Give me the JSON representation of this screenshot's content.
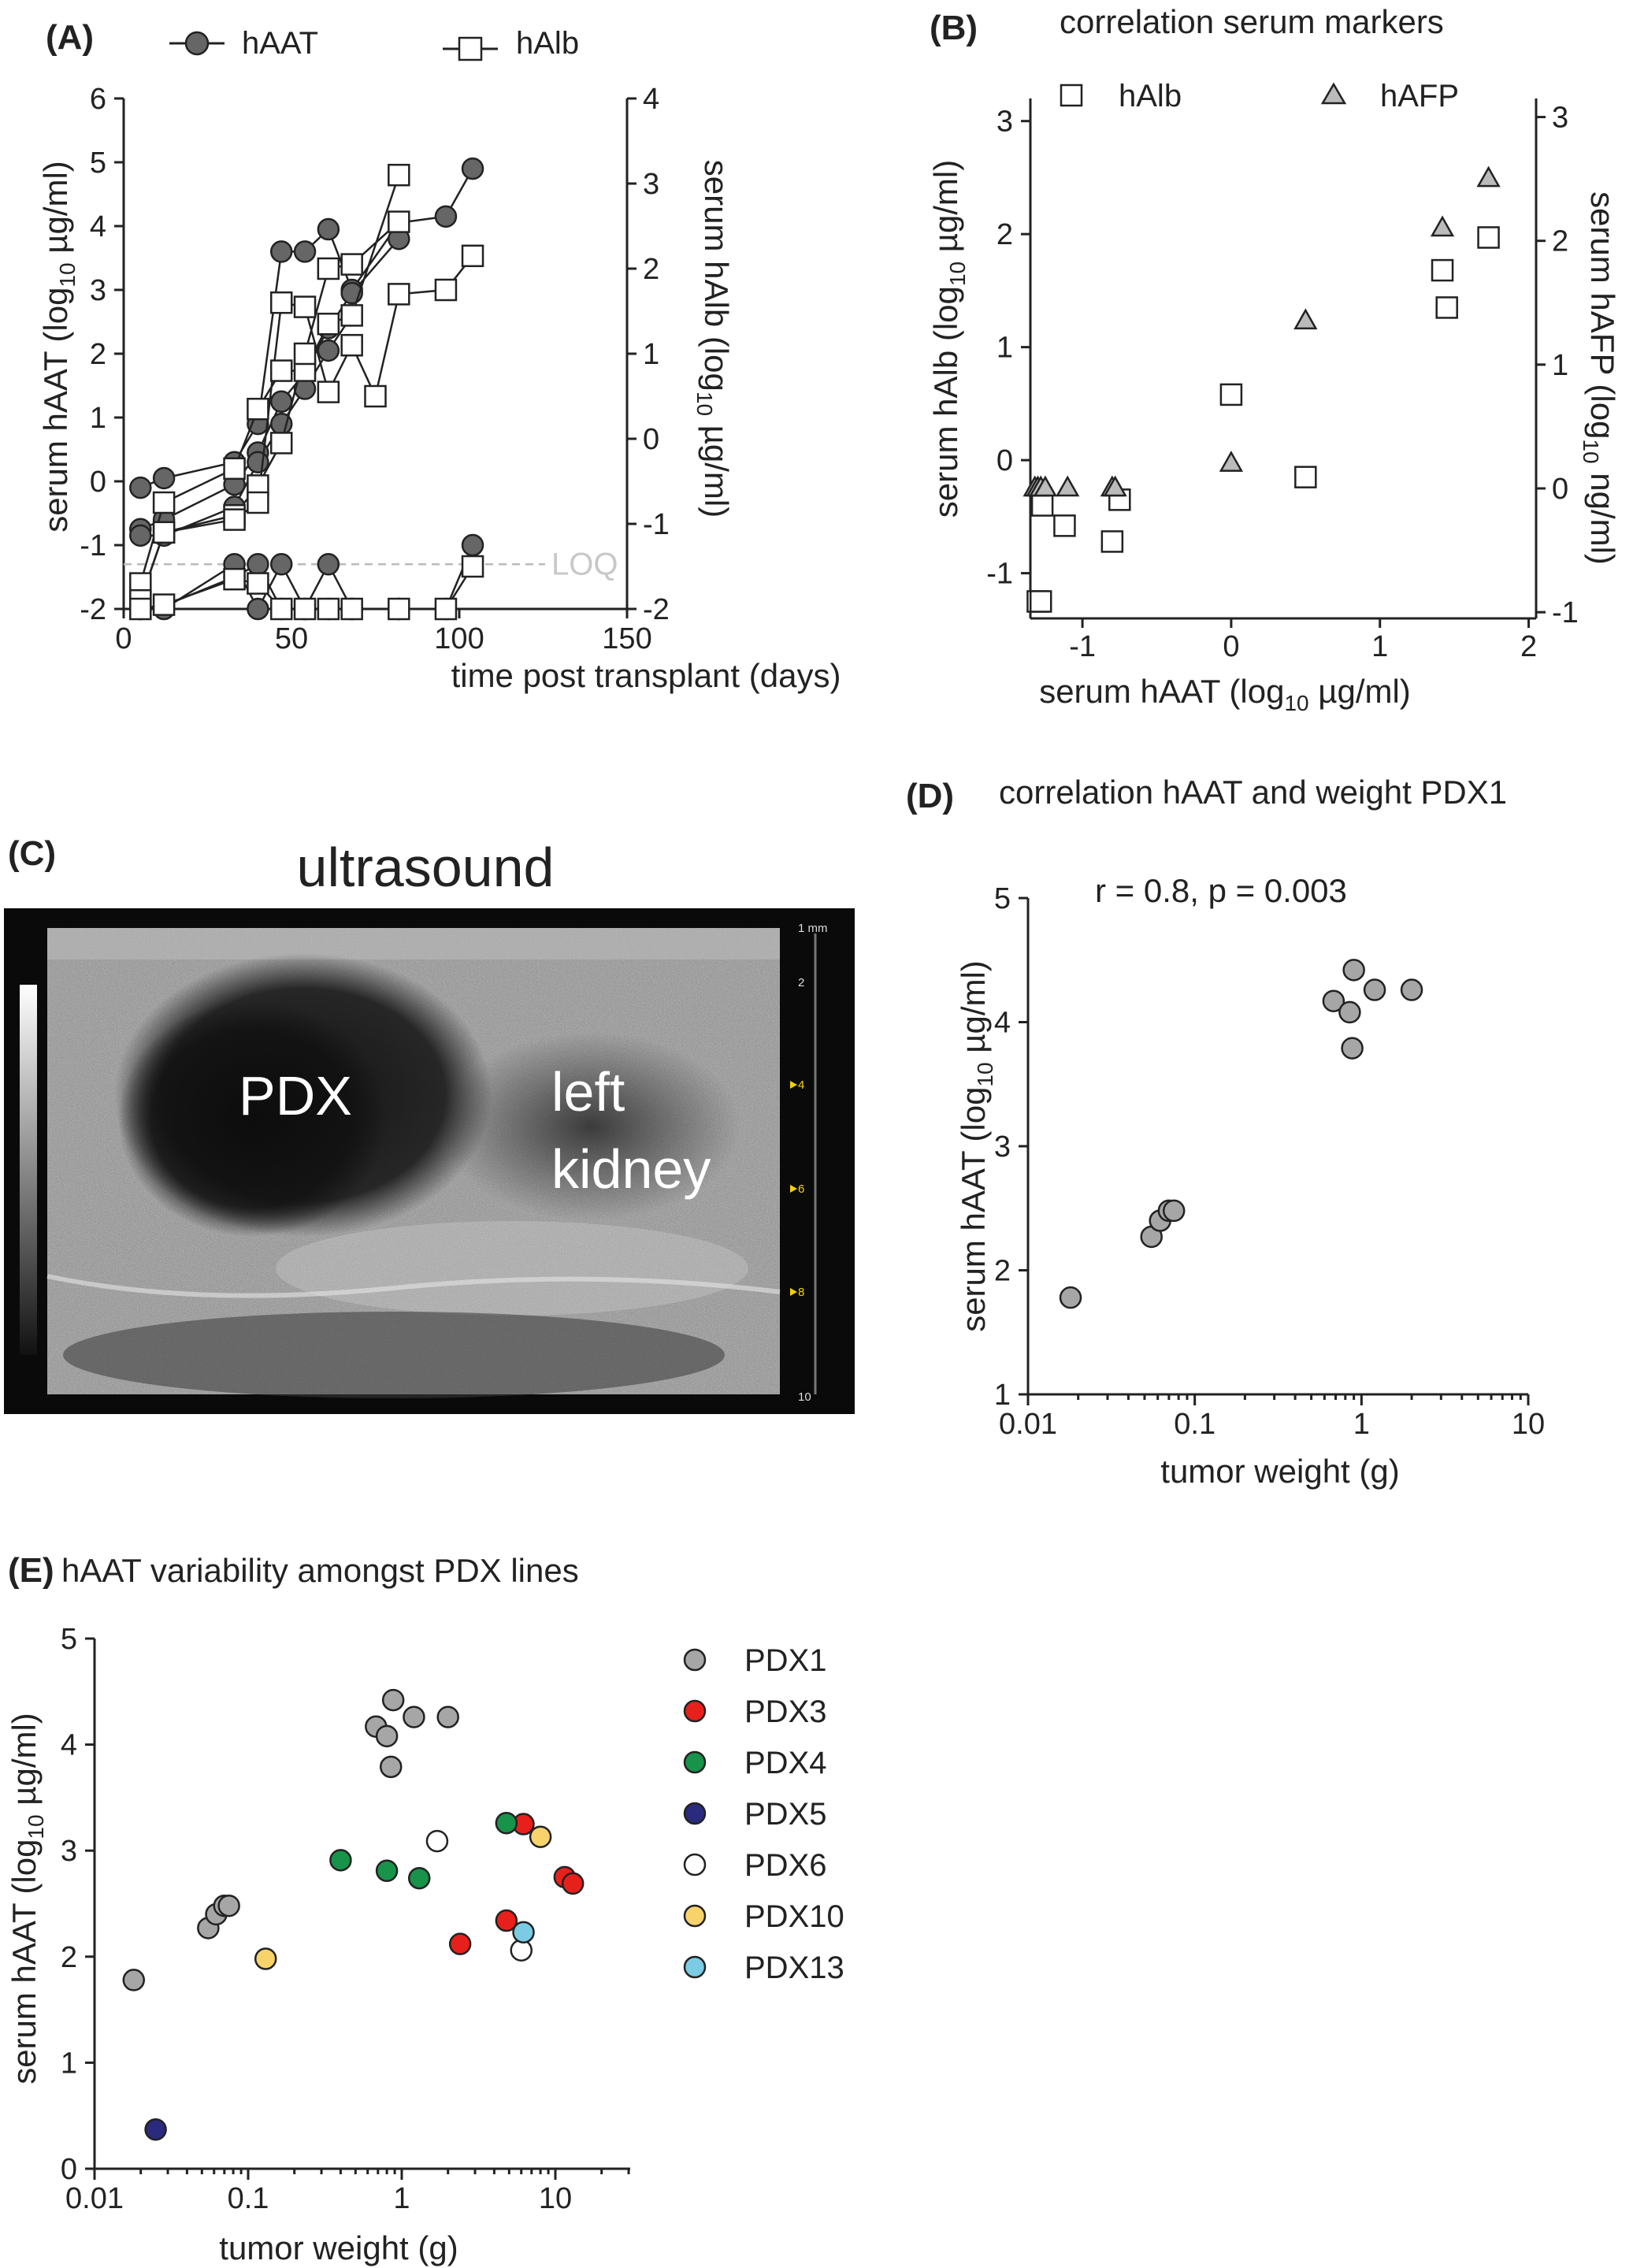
{
  "panels": {
    "A": {
      "letter": "(A)",
      "legend": [
        "hAAT",
        "hAlb"
      ],
      "ylabel_left": "serum hAAT (log10 µg/ml)",
      "ylabel_right": "serum hAlb (log10 µg/ml)",
      "xlabel": "time post transplant (days)",
      "loq_label": "LOQ",
      "x_ticks": [
        "0",
        "50",
        "100",
        "150"
      ],
      "y_left_ticks": [
        "-2",
        "-1",
        "0",
        "1",
        "2",
        "3",
        "4",
        "5",
        "6"
      ],
      "y_right_ticks": [
        "-2",
        "-1",
        "0",
        "1",
        "2",
        "3",
        "4"
      ]
    },
    "B": {
      "letter": "(B)",
      "title": "correlation serum markers",
      "legend": [
        "hAlb",
        "hAFP"
      ],
      "ylabel_left": "serum hAlb (log10 µg/ml)",
      "ylabel_right": "serum hAFP (log10 ng/ml)",
      "xlabel": "serum hAAT  (log10 µg/ml)",
      "x_ticks": [
        "-1",
        "0",
        "1",
        "2"
      ],
      "y_left_ticks": [
        "-1",
        "0",
        "1",
        "2",
        "3"
      ],
      "y_right_ticks": [
        "-1",
        "0",
        "1",
        "2",
        "3"
      ]
    },
    "C": {
      "letter": "(C)",
      "title": "ultrasound",
      "label_pdx": "PDX",
      "label_kidney_1": "left",
      "label_kidney_2": "kidney",
      "depth_labels": [
        "1 mm",
        "2",
        "4",
        "6",
        "8",
        "10"
      ]
    },
    "D": {
      "letter": "(D)",
      "title": "correlation hAAT and weight PDX1",
      "annotation": "r = 0.8, p = 0.003",
      "ylabel": "serum hAAT (log10 µg/ml)",
      "xlabel": "tumor weight (g)",
      "x_ticks": [
        "0.01",
        "0.1",
        "1",
        "10"
      ],
      "y_ticks": [
        "1",
        "2",
        "3",
        "4",
        "5"
      ]
    },
    "E": {
      "letter": "(E)",
      "title": "hAAT variability amongst PDX lines",
      "ylabel": "serum hAAT (log10 µg/ml)",
      "xlabel": "tumor weight (g)",
      "x_ticks": [
        "0.01",
        "0.1",
        "1",
        "10"
      ],
      "y_ticks": [
        "0",
        "1",
        "2",
        "3",
        "4",
        "5"
      ]
    }
  },
  "colors": {
    "hAAT_fill": "#666666",
    "hAFP_fill": "#bbbbbb",
    "PDX1": "#a6a6a6",
    "PDX3": "#e8201c",
    "PDX4": "#17934a",
    "PDX5": "#2a2a7e",
    "PDX6": "#ffffff",
    "PDX10": "#f8d26b",
    "PDX13": "#7ccbe5"
  },
  "chart_data": [
    {
      "panel": "A",
      "type": "line",
      "xlabel": "time post transplant (days)",
      "ylabel": "serum hAAT (log10 µg/ml)",
      "ylabel_right": "serum hAlb (log10 µg/ml)",
      "xlim": [
        0,
        150
      ],
      "ylim": [
        -2,
        6
      ],
      "ylim_right": [
        -2,
        4
      ],
      "loq": -1.3,
      "series": [
        {
          "name": "hAAT",
          "axis": "left",
          "lines": [
            [
              [
                5,
                -0.1
              ],
              [
                12,
                0.05
              ],
              [
                33,
                0.3
              ],
              [
                40,
                0.9
              ],
              [
                47,
                3.6
              ],
              [
                54,
                3.6
              ],
              [
                61,
                3.95
              ],
              [
                68,
                3.0
              ],
              [
                82,
                4.05
              ],
              [
                96,
                4.15
              ],
              [
                104,
                4.9
              ]
            ],
            [
              [
                5,
                -0.75
              ],
              [
                12,
                -0.6
              ],
              [
                33,
                -0.05
              ],
              [
                40,
                0.45
              ],
              [
                47,
                1.25
              ],
              [
                54,
                1.7
              ],
              [
                61,
                2.4
              ],
              [
                68,
                2.95
              ],
              [
                82,
                3.8
              ]
            ],
            [
              [
                5,
                -0.85
              ],
              [
                12,
                -0.85
              ],
              [
                33,
                -0.4
              ],
              [
                40,
                0.3
              ],
              [
                47,
                0.9
              ],
              [
                54,
                1.45
              ],
              [
                61,
                2.05
              ],
              [
                68,
                2.6
              ]
            ],
            [
              [
                5,
                -2
              ],
              [
                12,
                -1.95
              ],
              [
                33,
                -1.5
              ],
              [
                40,
                -1.3
              ],
              [
                47,
                -2
              ],
              [
                54,
                -2
              ],
              [
                61,
                -1.3
              ],
              [
                68,
                -2
              ],
              [
                82,
                -2
              ],
              [
                96,
                -2
              ],
              [
                104,
                -1.0
              ]
            ],
            [
              [
                5,
                -2
              ],
              [
                12,
                -2
              ],
              [
                33,
                -1.3
              ],
              [
                40,
                -2
              ],
              [
                47,
                -1.3
              ],
              [
                54,
                -2
              ],
              [
                61,
                -2
              ],
              [
                68,
                -2
              ],
              [
                82,
                -2
              ]
            ]
          ]
        },
        {
          "name": "hAlb",
          "axis": "right",
          "lines": [
            [
              [
                5,
                -1.7
              ],
              [
                12,
                -0.75
              ],
              [
                33,
                -0.35
              ],
              [
                40,
                0.35
              ],
              [
                47,
                0.8
              ],
              [
                54,
                0.8
              ],
              [
                61,
                1.35
              ],
              [
                68,
                1.45
              ],
              [
                82,
                3.1
              ]
            ],
            [
              [
                5,
                -1.9
              ],
              [
                12,
                -1.1
              ],
              [
                33,
                -0.9
              ],
              [
                40,
                -0.55
              ],
              [
                47,
                -0.05
              ],
              [
                54,
                1.0
              ],
              [
                61,
                2.0
              ],
              [
                68,
                2.05
              ],
              [
                82,
                2.55
              ]
            ],
            [
              [
                5,
                -1.9
              ],
              [
                12,
                -1.1
              ],
              [
                33,
                -0.95
              ],
              [
                40,
                -0.75
              ],
              [
                47,
                1.6
              ],
              [
                54,
                1.55
              ],
              [
                61,
                0.55
              ],
              [
                68,
                1.1
              ],
              [
                75,
                0.5
              ],
              [
                82,
                1.7
              ],
              [
                96,
                1.75
              ],
              [
                104,
                2.15
              ]
            ],
            [
              [
                5,
                -2
              ],
              [
                12,
                -1.95
              ],
              [
                33,
                -1.65
              ],
              [
                40,
                -1.7
              ],
              [
                47,
                -2
              ],
              [
                54,
                -2
              ],
              [
                61,
                -2
              ],
              [
                68,
                -2
              ],
              [
                82,
                -2
              ],
              [
                96,
                -2
              ],
              [
                104,
                -1.5
              ]
            ]
          ]
        }
      ]
    },
    {
      "panel": "B",
      "type": "scatter",
      "title": "correlation serum markers",
      "xlabel": "serum hAAT  (log10 µg/ml)",
      "ylabel": "serum hAlb (log10 µg/ml)",
      "ylabel_right": "serum hAFP (log10 ng/ml)",
      "xlim": [
        -1.35,
        2.05
      ],
      "ylim": [
        -1.4,
        3.2
      ],
      "ylim_right": [
        -1.05,
        3.15
      ],
      "series": [
        {
          "name": "hAlb",
          "axis": "left",
          "points": [
            [
              -1.3,
              -1.25
            ],
            [
              -1.28,
              -1.25
            ],
            [
              -1.27,
              -0.4
            ],
            [
              -1.12,
              -0.58
            ],
            [
              -0.8,
              -0.72
            ],
            [
              -0.75,
              -0.35
            ],
            [
              0,
              0.58
            ],
            [
              0.5,
              -0.15
            ],
            [
              1.42,
              1.68
            ],
            [
              1.45,
              1.35
            ],
            [
              1.73,
              1.97
            ]
          ]
        },
        {
          "name": "hAFP",
          "axis": "right",
          "points": [
            [
              -1.32,
              0.0
            ],
            [
              -1.3,
              0.0
            ],
            [
              -1.28,
              0.0
            ],
            [
              -1.25,
              0.0
            ],
            [
              -1.1,
              0.0
            ],
            [
              -0.8,
              0.0
            ],
            [
              -0.78,
              0.0
            ],
            [
              0,
              0.2
            ],
            [
              0.5,
              1.35
            ],
            [
              1.42,
              2.1
            ],
            [
              1.73,
              2.5
            ]
          ]
        }
      ]
    },
    {
      "panel": "D",
      "type": "scatter",
      "title": "correlation hAAT and weight PDX1",
      "xlabel": "tumor weight (g)",
      "ylabel": "serum hAAT (log10 µg/ml)",
      "x_scale": "log",
      "xlim": [
        0.01,
        10
      ],
      "ylim": [
        1,
        5
      ],
      "series": [
        {
          "name": "PDX1",
          "points": [
            [
              0.018,
              1.78
            ],
            [
              0.055,
              2.27
            ],
            [
              0.062,
              2.4
            ],
            [
              0.07,
              2.48
            ],
            [
              0.075,
              2.48
            ],
            [
              0.68,
              4.17
            ],
            [
              0.85,
              4.08
            ],
            [
              0.9,
              4.42
            ],
            [
              1.2,
              4.26
            ],
            [
              2.0,
              4.26
            ],
            [
              0.88,
              3.79
            ]
          ]
        }
      ]
    },
    {
      "panel": "E",
      "type": "scatter",
      "title": "hAAT variability amongst PDX lines",
      "xlabel": "tumor weight (g)",
      "ylabel": "serum hAAT (log10 µg/ml)",
      "x_scale": "log",
      "xlim": [
        0.01,
        30
      ],
      "ylim": [
        0,
        5
      ],
      "series": [
        {
          "name": "PDX1",
          "points": [
            [
              0.018,
              1.78
            ],
            [
              0.055,
              2.27
            ],
            [
              0.062,
              2.4
            ],
            [
              0.07,
              2.48
            ],
            [
              0.075,
              2.48
            ],
            [
              0.68,
              4.17
            ],
            [
              0.8,
              4.08
            ],
            [
              0.88,
              4.42
            ],
            [
              1.2,
              4.26
            ],
            [
              2.0,
              4.26
            ],
            [
              0.85,
              3.79
            ]
          ]
        },
        {
          "name": "PDX3",
          "points": [
            [
              2.4,
              2.12
            ],
            [
              4.8,
              2.34
            ],
            [
              6.2,
              3.25
            ],
            [
              11.5,
              2.75
            ],
            [
              13.0,
              2.69
            ]
          ]
        },
        {
          "name": "PDX4",
          "points": [
            [
              0.4,
              2.91
            ],
            [
              0.8,
              2.81
            ],
            [
              1.3,
              2.74
            ],
            [
              4.8,
              3.26
            ]
          ]
        },
        {
          "name": "PDX5",
          "points": [
            [
              0.025,
              0.37
            ]
          ]
        },
        {
          "name": "PDX6",
          "points": [
            [
              1.7,
              3.09
            ],
            [
              6.0,
              2.06
            ]
          ]
        },
        {
          "name": "PDX10",
          "points": [
            [
              0.13,
              1.98
            ],
            [
              8.0,
              3.13
            ]
          ]
        },
        {
          "name": "PDX13",
          "points": [
            [
              6.2,
              2.23
            ]
          ]
        }
      ]
    }
  ]
}
